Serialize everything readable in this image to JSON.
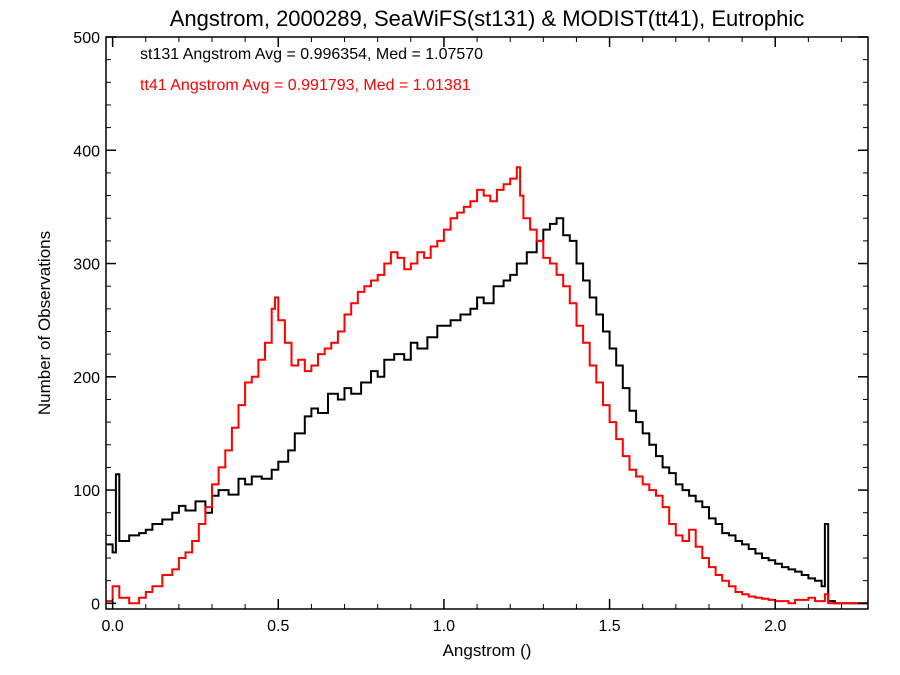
{
  "chart_data": {
    "type": "line",
    "style": "step-histogram",
    "title": "Angstrom, 2000289, SeaWiFS(st131) & MODIST(tt41), Eutrophic",
    "xlabel": "Angstrom ()",
    "ylabel": "Number of Observations",
    "xlim": [
      -0.02,
      2.28
    ],
    "ylim": [
      -5,
      500
    ],
    "x_ticks": [
      0.0,
      0.5,
      1.0,
      1.5,
      2.0
    ],
    "x_tick_labels": [
      "0.0",
      "0.5",
      "1.0",
      "1.5",
      "2.0"
    ],
    "y_ticks": [
      0,
      100,
      200,
      300,
      400,
      500
    ],
    "y_tick_labels": [
      "0",
      "100",
      "200",
      "300",
      "400",
      "500"
    ],
    "grid": false,
    "legend": "top-left text annotations",
    "annotations": [
      {
        "text": "st131 Angstrom Avg = 0.996354, Med = 1.07570",
        "color": "#000000"
      },
      {
        "text": "tt41 Angstrom Avg = 0.991793, Med = 1.01381",
        "color": "#ff0000"
      }
    ],
    "series": [
      {
        "name": "st131",
        "color": "#000000",
        "points": [
          [
            -0.02,
            52
          ],
          [
            0.0,
            45
          ],
          [
            0.01,
            114
          ],
          [
            0.02,
            55
          ],
          [
            0.05,
            60
          ],
          [
            0.08,
            62
          ],
          [
            0.1,
            65
          ],
          [
            0.12,
            70
          ],
          [
            0.15,
            74
          ],
          [
            0.18,
            80
          ],
          [
            0.2,
            86
          ],
          [
            0.22,
            82
          ],
          [
            0.25,
            90
          ],
          [
            0.28,
            80
          ],
          [
            0.3,
            95
          ],
          [
            0.32,
            100
          ],
          [
            0.35,
            96
          ],
          [
            0.38,
            110
          ],
          [
            0.4,
            105
          ],
          [
            0.42,
            112
          ],
          [
            0.45,
            110
          ],
          [
            0.48,
            118
          ],
          [
            0.5,
            125
          ],
          [
            0.53,
            135
          ],
          [
            0.55,
            150
          ],
          [
            0.58,
            165
          ],
          [
            0.6,
            172
          ],
          [
            0.62,
            168
          ],
          [
            0.65,
            185
          ],
          [
            0.68,
            180
          ],
          [
            0.7,
            190
          ],
          [
            0.72,
            185
          ],
          [
            0.75,
            195
          ],
          [
            0.78,
            205
          ],
          [
            0.8,
            200
          ],
          [
            0.82,
            215
          ],
          [
            0.85,
            220
          ],
          [
            0.88,
            215
          ],
          [
            0.9,
            230
          ],
          [
            0.92,
            225
          ],
          [
            0.95,
            235
          ],
          [
            0.98,
            245
          ],
          [
            1.0,
            245
          ],
          [
            1.02,
            250
          ],
          [
            1.05,
            255
          ],
          [
            1.08,
            260
          ],
          [
            1.1,
            270
          ],
          [
            1.12,
            265
          ],
          [
            1.15,
            280
          ],
          [
            1.18,
            285
          ],
          [
            1.2,
            290
          ],
          [
            1.22,
            300
          ],
          [
            1.25,
            310
          ],
          [
            1.28,
            320
          ],
          [
            1.3,
            330
          ],
          [
            1.32,
            335
          ],
          [
            1.34,
            340
          ],
          [
            1.36,
            325
          ],
          [
            1.38,
            320
          ],
          [
            1.4,
            300
          ],
          [
            1.42,
            285
          ],
          [
            1.44,
            270
          ],
          [
            1.46,
            255
          ],
          [
            1.48,
            240
          ],
          [
            1.5,
            225
          ],
          [
            1.52,
            210
          ],
          [
            1.54,
            190
          ],
          [
            1.56,
            170
          ],
          [
            1.58,
            160
          ],
          [
            1.6,
            150
          ],
          [
            1.62,
            140
          ],
          [
            1.64,
            130
          ],
          [
            1.66,
            120
          ],
          [
            1.68,
            115
          ],
          [
            1.7,
            105
          ],
          [
            1.72,
            100
          ],
          [
            1.74,
            95
          ],
          [
            1.76,
            90
          ],
          [
            1.78,
            85
          ],
          [
            1.8,
            75
          ],
          [
            1.82,
            70
          ],
          [
            1.84,
            62
          ],
          [
            1.86,
            60
          ],
          [
            1.88,
            55
          ],
          [
            1.9,
            52
          ],
          [
            1.92,
            48
          ],
          [
            1.94,
            44
          ],
          [
            1.96,
            40
          ],
          [
            1.98,
            38
          ],
          [
            2.0,
            35
          ],
          [
            2.02,
            32
          ],
          [
            2.04,
            30
          ],
          [
            2.06,
            28
          ],
          [
            2.08,
            25
          ],
          [
            2.1,
            22
          ],
          [
            2.12,
            20
          ],
          [
            2.14,
            15
          ],
          [
            2.15,
            70
          ],
          [
            2.16,
            2
          ],
          [
            2.18,
            0
          ],
          [
            2.28,
            0
          ]
        ]
      },
      {
        "name": "tt41",
        "color": "#ff0000",
        "points": [
          [
            -0.02,
            2
          ],
          [
            0.0,
            15
          ],
          [
            0.02,
            5
          ],
          [
            0.05,
            0
          ],
          [
            0.08,
            5
          ],
          [
            0.1,
            10
          ],
          [
            0.12,
            15
          ],
          [
            0.15,
            25
          ],
          [
            0.18,
            30
          ],
          [
            0.2,
            40
          ],
          [
            0.22,
            45
          ],
          [
            0.24,
            55
          ],
          [
            0.26,
            70
          ],
          [
            0.28,
            85
          ],
          [
            0.3,
            105
          ],
          [
            0.32,
            120
          ],
          [
            0.34,
            135
          ],
          [
            0.36,
            155
          ],
          [
            0.38,
            175
          ],
          [
            0.4,
            195
          ],
          [
            0.42,
            200
          ],
          [
            0.44,
            215
          ],
          [
            0.46,
            230
          ],
          [
            0.48,
            260
          ],
          [
            0.49,
            270
          ],
          [
            0.5,
            250
          ],
          [
            0.52,
            230
          ],
          [
            0.54,
            210
          ],
          [
            0.56,
            215
          ],
          [
            0.58,
            205
          ],
          [
            0.6,
            210
          ],
          [
            0.62,
            220
          ],
          [
            0.64,
            225
          ],
          [
            0.66,
            230
          ],
          [
            0.68,
            240
          ],
          [
            0.7,
            255
          ],
          [
            0.72,
            265
          ],
          [
            0.74,
            275
          ],
          [
            0.76,
            280
          ],
          [
            0.78,
            285
          ],
          [
            0.8,
            290
          ],
          [
            0.82,
            300
          ],
          [
            0.84,
            310
          ],
          [
            0.86,
            305
          ],
          [
            0.88,
            295
          ],
          [
            0.9,
            300
          ],
          [
            0.92,
            310
          ],
          [
            0.94,
            305
          ],
          [
            0.96,
            315
          ],
          [
            0.98,
            320
          ],
          [
            1.0,
            330
          ],
          [
            1.02,
            340
          ],
          [
            1.04,
            345
          ],
          [
            1.06,
            350
          ],
          [
            1.08,
            355
          ],
          [
            1.1,
            365
          ],
          [
            1.12,
            360
          ],
          [
            1.14,
            355
          ],
          [
            1.16,
            365
          ],
          [
            1.18,
            370
          ],
          [
            1.2,
            375
          ],
          [
            1.22,
            385
          ],
          [
            1.23,
            360
          ],
          [
            1.24,
            340
          ],
          [
            1.26,
            330
          ],
          [
            1.28,
            320
          ],
          [
            1.3,
            305
          ],
          [
            1.32,
            300
          ],
          [
            1.34,
            290
          ],
          [
            1.36,
            280
          ],
          [
            1.38,
            265
          ],
          [
            1.4,
            245
          ],
          [
            1.42,
            230
          ],
          [
            1.44,
            210
          ],
          [
            1.46,
            195
          ],
          [
            1.48,
            175
          ],
          [
            1.5,
            160
          ],
          [
            1.52,
            145
          ],
          [
            1.54,
            130
          ],
          [
            1.56,
            118
          ],
          [
            1.58,
            112
          ],
          [
            1.6,
            105
          ],
          [
            1.62,
            100
          ],
          [
            1.64,
            95
          ],
          [
            1.66,
            85
          ],
          [
            1.68,
            70
          ],
          [
            1.7,
            60
          ],
          [
            1.72,
            55
          ],
          [
            1.74,
            65
          ],
          [
            1.76,
            50
          ],
          [
            1.78,
            40
          ],
          [
            1.8,
            32
          ],
          [
            1.82,
            25
          ],
          [
            1.84,
            20
          ],
          [
            1.86,
            15
          ],
          [
            1.88,
            10
          ],
          [
            1.9,
            8
          ],
          [
            1.92,
            6
          ],
          [
            1.94,
            5
          ],
          [
            1.96,
            4
          ],
          [
            1.98,
            3
          ],
          [
            2.0,
            2
          ],
          [
            2.04,
            0
          ],
          [
            2.06,
            3
          ],
          [
            2.1,
            5
          ],
          [
            2.12,
            2
          ],
          [
            2.15,
            8
          ],
          [
            2.16,
            0
          ],
          [
            2.28,
            0
          ]
        ]
      }
    ]
  }
}
